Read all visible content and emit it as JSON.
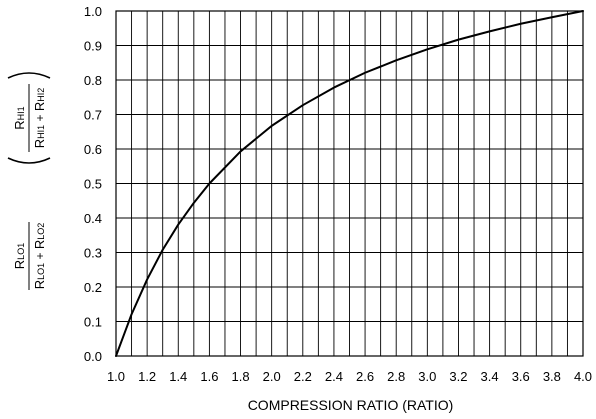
{
  "chart_data": {
    "type": "line",
    "title": "",
    "xlabel": "COMPRESSION RATIO (RATIO)",
    "ylabel_top": {
      "numerator": {
        "main": "R",
        "sub": "HI1"
      },
      "denominator": [
        {
          "main": "R",
          "sub": "HI1"
        },
        {
          "op": " + "
        },
        {
          "main": "R",
          "sub": "HI2"
        }
      ]
    },
    "ylabel_bottom": {
      "numerator": {
        "main": "R",
        "sub": "LO1"
      },
      "denominator": [
        {
          "main": "R",
          "sub": "LO1"
        },
        {
          "op": " + "
        },
        {
          "main": "R",
          "sub": "LO2"
        }
      ]
    },
    "xlim": [
      1.0,
      4.0
    ],
    "ylim": [
      0.0,
      1.0
    ],
    "x_ticks": [
      "1.0",
      "1.2",
      "1.4",
      "1.6",
      "1.8",
      "2.0",
      "2.2",
      "2.4",
      "2.6",
      "2.8",
      "3.0",
      "3.2",
      "3.4",
      "3.6",
      "3.8",
      "4.0"
    ],
    "y_ticks": [
      "0.0",
      "0.1",
      "0.2",
      "0.3",
      "0.4",
      "0.5",
      "0.6",
      "0.7",
      "0.8",
      "0.9",
      "1.0"
    ],
    "x_minor_step": 0.1,
    "y_minor_step": 0.1,
    "grid": true,
    "series": [
      {
        "color": "#000000",
        "x": [
          1.0,
          1.1,
          1.2,
          1.3,
          1.4,
          1.5,
          1.6,
          1.8,
          2.0,
          2.2,
          2.4,
          2.6,
          2.8,
          3.0,
          3.2,
          3.4,
          3.6,
          3.8,
          4.0
        ],
        "y": [
          0.0,
          0.121,
          0.222,
          0.308,
          0.381,
          0.444,
          0.5,
          0.593,
          0.667,
          0.727,
          0.778,
          0.821,
          0.857,
          0.889,
          0.917,
          0.941,
          0.963,
          0.982,
          1.0
        ]
      }
    ]
  }
}
